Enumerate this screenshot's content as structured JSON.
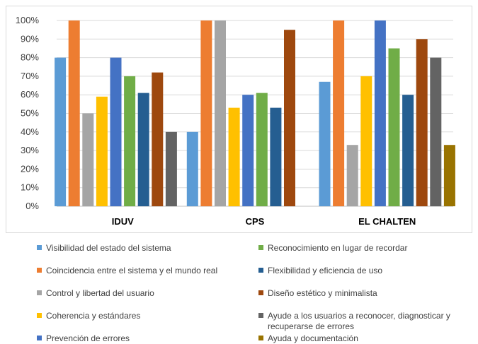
{
  "chart_data": {
    "type": "bar",
    "categories": [
      "IDUV",
      "CPS",
      "EL CHALTEN"
    ],
    "yticks": [
      "0%",
      "10%",
      "20%",
      "30%",
      "40%",
      "50%",
      "60%",
      "70%",
      "80%",
      "90%",
      "100%"
    ],
    "ylim": [
      0,
      100
    ],
    "grid": true,
    "legend_position": "bottom",
    "series": [
      {
        "name": "Visibilidad del estado del sistema",
        "color": "#5b9bd5",
        "values": [
          80,
          40,
          67
        ]
      },
      {
        "name": "Coincidencia entre el sistema y el mundo real",
        "color": "#ed7d31",
        "values": [
          100,
          100,
          100
        ]
      },
      {
        "name": "Control y libertad del usuario",
        "color": "#a5a5a5",
        "values": [
          50,
          100,
          33
        ]
      },
      {
        "name": "Coherencia y estándares",
        "color": "#ffc000",
        "values": [
          59,
          53,
          70
        ]
      },
      {
        "name": "Prevención de errores",
        "color": "#4472c4",
        "values": [
          80,
          60,
          100
        ]
      },
      {
        "name": "Reconocimiento en lugar de recordar",
        "color": "#70ad47",
        "values": [
          70,
          61,
          85
        ]
      },
      {
        "name": "Flexibilidad y eficiencia de uso",
        "color": "#255e91",
        "values": [
          61,
          53,
          60
        ]
      },
      {
        "name": "Diseño estético y minimalista",
        "color": "#9e480e",
        "values": [
          72,
          95,
          90
        ]
      },
      {
        "name": "Ayude a los usuarios a reconocer, diagnosticar y recuperarse de errores",
        "color": "#636363",
        "values": [
          40,
          0,
          80
        ]
      },
      {
        "name": "Ayuda y documentación",
        "color": "#997300",
        "values": [
          0,
          0,
          33
        ]
      }
    ],
    "legend": [
      {
        "lines": [
          "Visibilidad del estado del sistema"
        ],
        "color": "#5b9bd5"
      },
      {
        "lines": [
          "Coincidencia entre el sistema y el mundo real"
        ],
        "color": "#ed7d31"
      },
      {
        "lines": [
          "Control y libertad del usuario"
        ],
        "color": "#a5a5a5"
      },
      {
        "lines": [
          "Coherencia y estándares"
        ],
        "color": "#ffc000"
      },
      {
        "lines": [
          "Prevención de errores"
        ],
        "color": "#4472c4"
      },
      {
        "lines": [
          "Reconocimiento en lugar de recordar"
        ],
        "color": "#70ad47"
      },
      {
        "lines": [
          "Flexibilidad y eficiencia de uso"
        ],
        "color": "#255e91"
      },
      {
        "lines": [
          "Diseño estético y minimalista"
        ],
        "color": "#9e480e"
      },
      {
        "lines": [
          "Ayude a los usuarios a reconocer, diagnosticar y",
          "recuperarse de errores"
        ],
        "color": "#636363"
      },
      {
        "lines": [
          "Ayuda y documentación"
        ],
        "color": "#997300"
      }
    ]
  }
}
